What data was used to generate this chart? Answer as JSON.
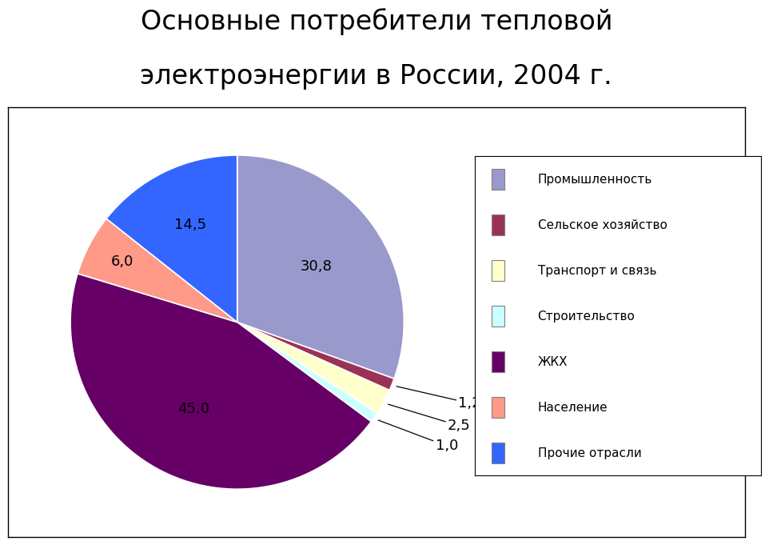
{
  "title_line1": "Основные потребители тепловой",
  "title_line2": "электроэнергии в России, 2004 г.",
  "title_fontsize": 24,
  "labels": [
    "Промышленность",
    "Сельское хозяйство",
    "Транспорт и связь",
    "Строительство",
    "ЖКХ",
    "Население",
    "Прочие отрасли"
  ],
  "values": [
    30.8,
    1.2,
    2.5,
    1.0,
    45.0,
    6.0,
    14.5
  ],
  "colors": [
    "#9999CC",
    "#993355",
    "#FFFFCC",
    "#CCFFFF",
    "#660066",
    "#FF9988",
    "#3366FF"
  ],
  "label_values": [
    "30,8",
    "1,2",
    "2,5",
    "1,0",
    "45,0",
    "6,0",
    "14,5"
  ],
  "background_color": "#FFFFFF"
}
